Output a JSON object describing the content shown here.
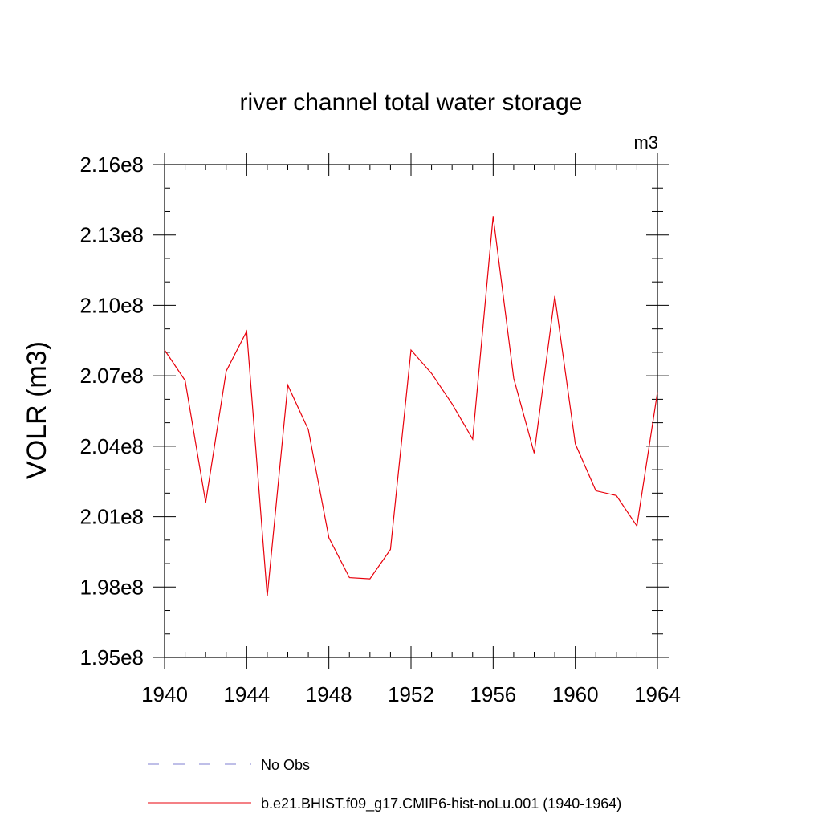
{
  "chart_data": {
    "type": "line",
    "title": "river channel total water storage",
    "units": "m3",
    "ylabel": "VOLR  (m3)",
    "xlabel": "",
    "xlim": [
      1940,
      1964
    ],
    "ylim": [
      195000000,
      216000000
    ],
    "x_ticks": [
      1940,
      1944,
      1948,
      1952,
      1956,
      1960,
      1964
    ],
    "x_tick_labels": [
      "1940",
      "1944",
      "1948",
      "1952",
      "1956",
      "1960",
      "1964"
    ],
    "y_ticks": [
      195000000,
      198000000,
      201000000,
      204000000,
      207000000,
      210000000,
      213000000,
      216000000
    ],
    "y_tick_labels": [
      "1.95e8",
      "1.98e8",
      "2.01e8",
      "2.04e8",
      "2.07e8",
      "2.10e8",
      "2.13e8",
      "2.16e8"
    ],
    "y_minor_step": 1000000,
    "x_minor_step": 1,
    "grid": false,
    "series": [
      {
        "name": "b.e21.BHIST.f09_g17.CMIP6-hist-noLu.001 (1940-1964)",
        "color": "#e8000b",
        "style": "solid",
        "x": [
          1940,
          1941,
          1942,
          1943,
          1944,
          1945,
          1946,
          1947,
          1948,
          1949,
          1950,
          1951,
          1952,
          1953,
          1954,
          1955,
          1956,
          1957,
          1958,
          1959,
          1960,
          1961,
          1962,
          1963,
          1964
        ],
        "values": [
          208100000,
          206800000,
          201600000,
          207200000,
          208900000,
          197600000,
          206600000,
          204700000,
          200100000,
          198400000,
          198350000,
          199600000,
          208100000,
          207100000,
          205800000,
          204300000,
          213800000,
          206900000,
          203700000,
          210400000,
          204100000,
          202100000,
          201900000,
          200600000,
          206300000
        ]
      }
    ],
    "legend": {
      "placement": "bottom",
      "entries": [
        {
          "label": "No Obs",
          "color": "#7f7fd0",
          "style": "dashed"
        },
        {
          "label": "b.e21.BHIST.f09_g17.CMIP6-hist-noLu.001 (1940-1964)",
          "color": "#e8000b",
          "style": "solid"
        }
      ]
    }
  }
}
